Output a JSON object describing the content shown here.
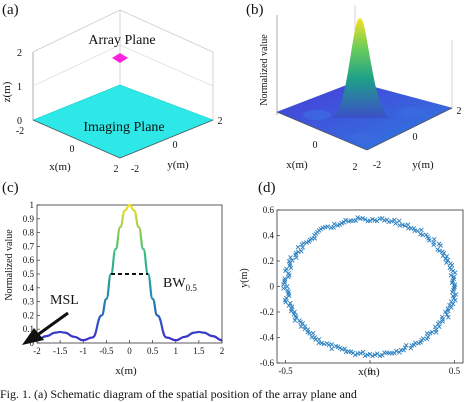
{
  "panels": {
    "a": {
      "label": "(a)",
      "array_plane_label": "Array Plane",
      "imaging_plane_label": "Imaging Plane",
      "zlabel": "z(m)",
      "xlabel": "x(m)",
      "ylabel": "y(m)",
      "z_ticks": [
        "2",
        "1",
        "0"
      ],
      "x_ticks": [
        "-2",
        "0",
        "2"
      ],
      "y_ticks": [
        "2",
        "0",
        "-2"
      ],
      "colors": {
        "imaging_plane": "#2ee8e8",
        "array_plane": "#ff22dd"
      }
    },
    "b": {
      "label": "(b)",
      "zlabel": "Normalized value",
      "xlabel": "x(m)",
      "ylabel": "y(m)",
      "x_ticks": [
        "0",
        "2"
      ],
      "y_ticks": [
        "2",
        "0",
        "-2"
      ]
    },
    "c": {
      "label": "(c)",
      "bw_label": "BW",
      "bw_sub": "0.5",
      "msl_label": "MSL"
    },
    "d": {
      "label": "(d)"
    }
  },
  "chart_data": [
    {
      "type": "line",
      "panel": "c",
      "xlabel": "x(m)",
      "ylabel": "Normalized value",
      "xlim": [
        -2,
        2
      ],
      "ylim": [
        0,
        1
      ],
      "x_ticks": [
        -2,
        -1.5,
        -1,
        -0.5,
        0,
        0.5,
        1,
        1.5,
        2
      ],
      "y_ticks": [
        0,
        0.1,
        0.2,
        0.3,
        0.4,
        0.5,
        0.6,
        0.7,
        0.8,
        0.9,
        1
      ],
      "x": [
        -2,
        -1.8,
        -1.6,
        -1.5,
        -1.4,
        -1.2,
        -1.0,
        -0.8,
        -0.6,
        -0.5,
        -0.4,
        -0.3,
        -0.2,
        -0.1,
        0,
        0.1,
        0.2,
        0.3,
        0.4,
        0.5,
        0.6,
        0.8,
        1.0,
        1.2,
        1.4,
        1.5,
        1.6,
        1.8,
        2
      ],
      "y": [
        0.02,
        0.05,
        0.075,
        0.08,
        0.075,
        0.045,
        0.02,
        0.04,
        0.2,
        0.32,
        0.5,
        0.68,
        0.84,
        0.96,
        1.0,
        0.96,
        0.84,
        0.68,
        0.5,
        0.32,
        0.2,
        0.04,
        0.02,
        0.045,
        0.075,
        0.08,
        0.075,
        0.05,
        0.02
      ],
      "annotations": [
        {
          "text": "BW0.5",
          "y": 0.5,
          "x_from": -0.4,
          "x_to": 0.4
        },
        {
          "text": "MSL",
          "x": -1.7,
          "y": 0.07
        }
      ]
    },
    {
      "type": "scatter",
      "panel": "d",
      "xlabel": "x(m)",
      "ylabel": "y(m)",
      "xlim": [
        -0.55,
        0.55
      ],
      "ylim": [
        -0.6,
        0.6
      ],
      "x_ticks": [
        -0.5,
        0,
        0.5
      ],
      "y_ticks": [
        -0.6,
        -0.4,
        -0.2,
        0,
        0.2,
        0.4,
        0.6
      ],
      "shape": "ring",
      "center": [
        0,
        0
      ],
      "radius_x": 0.5,
      "radius_y": 0.53,
      "num_points": 220,
      "color": "#2a7fc0"
    }
  ],
  "caption": "Fig. 1.  (a) Schematic diagram of the spatial position of the array plane and"
}
